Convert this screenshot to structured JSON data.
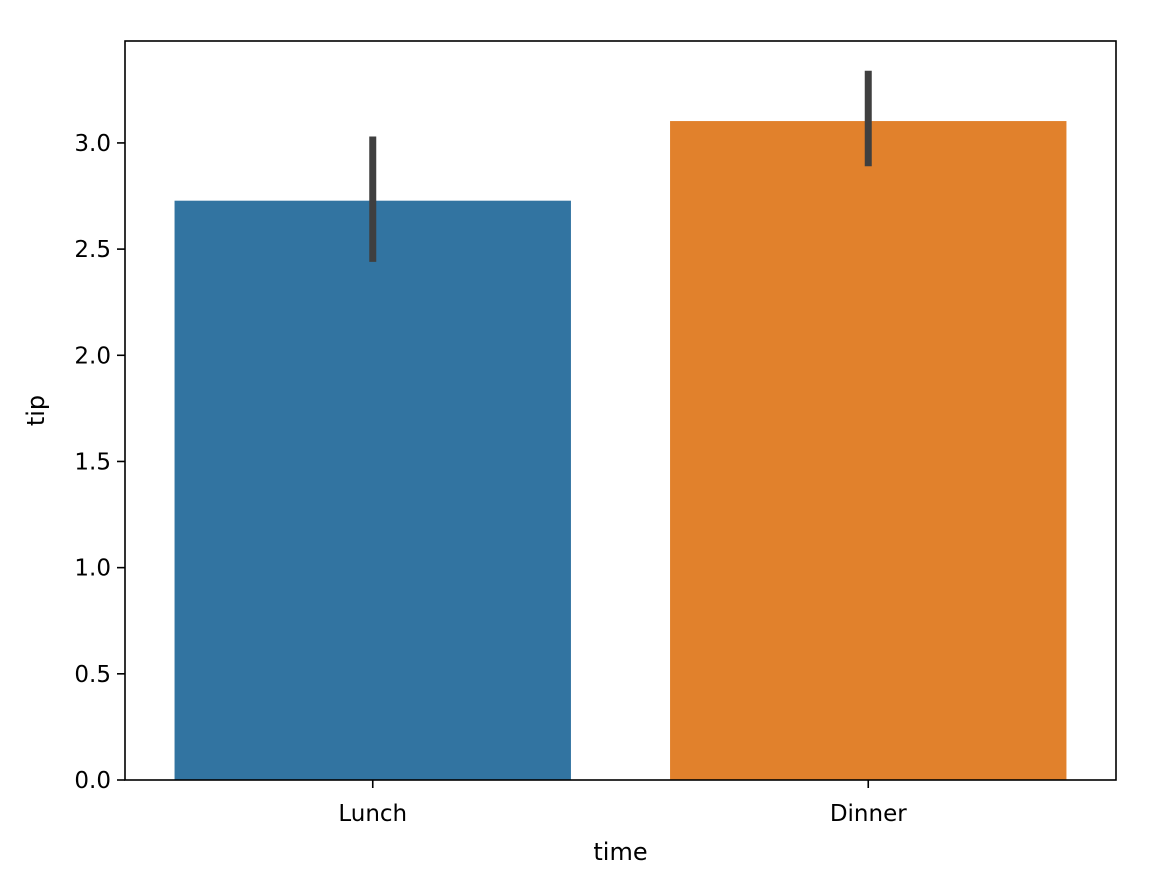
{
  "chart_data": {
    "type": "bar",
    "title": "",
    "xlabel": "time",
    "ylabel": "tip",
    "categories": [
      "Lunch",
      "Dinner"
    ],
    "values": [
      2.728,
      3.103
    ],
    "error_bars": [
      {
        "low": 2.44,
        "high": 3.03
      },
      {
        "low": 2.89,
        "high": 3.34
      }
    ],
    "bar_colors": [
      "#3274a1",
      "#e1812c"
    ],
    "error_bar_color": "#3f3f3f",
    "ylim": [
      0,
      3.48
    ],
    "yticks": [
      0.0,
      0.5,
      1.0,
      1.5,
      2.0,
      2.5,
      3.0
    ],
    "ytick_labels": [
      "0.0",
      "0.5",
      "1.0",
      "1.5",
      "2.0",
      "2.5",
      "3.0"
    ],
    "grid": false,
    "legend": "none"
  }
}
